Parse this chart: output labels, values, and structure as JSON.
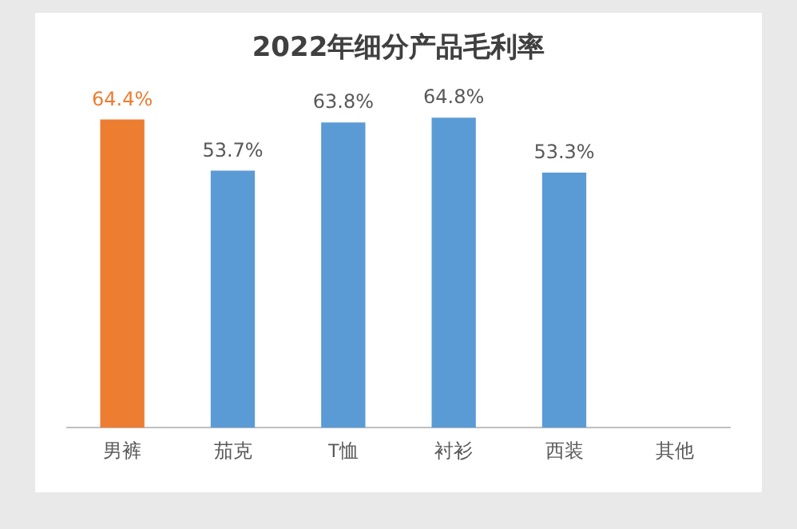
{
  "chart_data": {
    "type": "bar",
    "title": "2022年细分产品毛利率",
    "categories": [
      "男裤",
      "茄克",
      "T恤",
      "衬衫",
      "西装",
      "其他"
    ],
    "values": [
      64.4,
      53.7,
      63.8,
      64.8,
      53.3,
      null
    ],
    "value_labels": [
      "64.4%",
      "53.7%",
      "63.8%",
      "64.8%",
      "53.3%",
      null
    ],
    "colors": [
      "#ed7d31",
      "#5b9bd5",
      "#5b9bd5",
      "#5b9bd5",
      "#5b9bd5",
      "#5b9bd5"
    ],
    "grid": false,
    "legend": false,
    "tick_labels": "x"
  }
}
